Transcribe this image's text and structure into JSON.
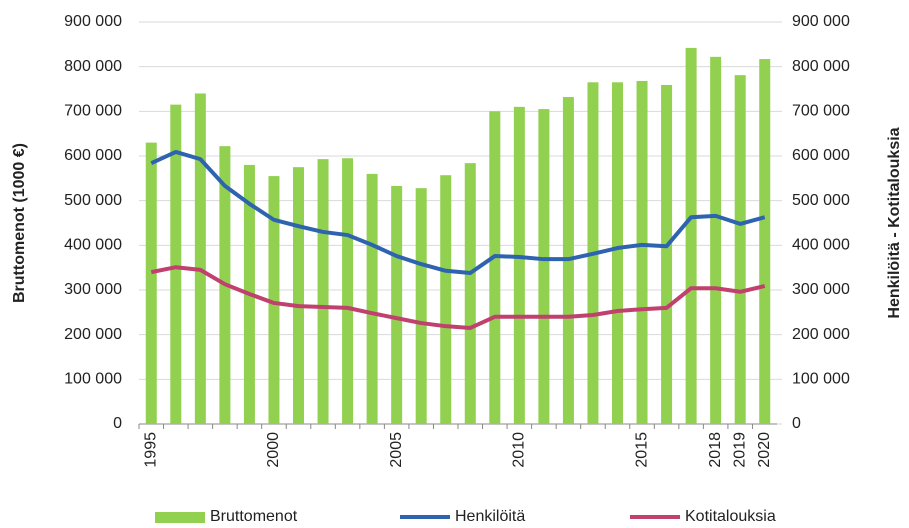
{
  "chart_data": {
    "type": "bar-line",
    "ylabel": "Bruttomenot (1000 €)",
    "y2label": "Henkilöitä - Kotitalouksia",
    "categories": [
      "1995",
      null,
      null,
      null,
      null,
      "2000",
      null,
      null,
      null,
      null,
      "2005",
      null,
      null,
      null,
      null,
      "2010",
      null,
      null,
      null,
      null,
      "2015",
      null,
      null,
      "2018",
      "2019",
      "2020"
    ],
    "series": [
      {
        "name": "Bruttomenot",
        "type": "bar",
        "color": "#92d050",
        "values": [
          630000,
          715000,
          740000,
          622000,
          580000,
          555000,
          575000,
          593000,
          595000,
          560000,
          533000,
          528000,
          557000,
          584000,
          700000,
          710000,
          705000,
          732000,
          765000,
          765000,
          768000,
          759000,
          842000,
          822000,
          781000,
          817000
        ]
      },
      {
        "name": "Henkilöitä",
        "type": "line",
        "axis": "y2",
        "color": "#2e63b0",
        "values": [
          584000,
          609000,
          593000,
          533000,
          493000,
          457000,
          443000,
          430000,
          423000,
          401000,
          376000,
          358000,
          343000,
          338000,
          376000,
          374000,
          369000,
          369000,
          381000,
          394000,
          401000,
          398000,
          463000,
          466000,
          448000,
          463000
        ]
      },
      {
        "name": "Kotitalouksia",
        "type": "line",
        "axis": "y2",
        "color": "#c0406e",
        "values": [
          340000,
          351000,
          345000,
          313000,
          291000,
          271000,
          264000,
          262000,
          260000,
          248000,
          237000,
          226000,
          219000,
          215000,
          240000,
          240000,
          240000,
          240000,
          244000,
          253000,
          257000,
          260000,
          304000,
          304000,
          296000,
          309000
        ]
      }
    ],
    "ylim": [
      0,
      900000
    ],
    "yticks": [
      0,
      {
        "value": 100000,
        "label": "100 000"
      },
      {
        "value": 200000,
        "label": "200 000"
      },
      {
        "value": 300000,
        "label": "300 000"
      },
      {
        "value": 400000,
        "label": "400 000"
      },
      {
        "value": 500000,
        "label": "500 000"
      },
      {
        "value": 600000,
        "label": "600 000"
      },
      {
        "value": 700000,
        "label": "700 000"
      },
      {
        "value": 800000,
        "label": "800 000"
      },
      {
        "value": 900000,
        "label": "900 000"
      }
    ],
    "y2lim": [
      0,
      900000
    ],
    "y2ticks": [
      0,
      {
        "value": 100000,
        "label": "100 000"
      },
      {
        "value": 200000,
        "label": "200 000"
      },
      {
        "value": 300000,
        "label": "300 000"
      },
      {
        "value": 400000,
        "label": "400 000"
      },
      {
        "value": 500000,
        "label": "500 000"
      },
      {
        "value": 600000,
        "label": "600 000"
      },
      {
        "value": 700000,
        "label": "700 000"
      },
      {
        "value": 800000,
        "label": "800 000"
      },
      {
        "value": 900000,
        "label": "900 000"
      }
    ],
    "grid": true,
    "legend": "bottom"
  }
}
